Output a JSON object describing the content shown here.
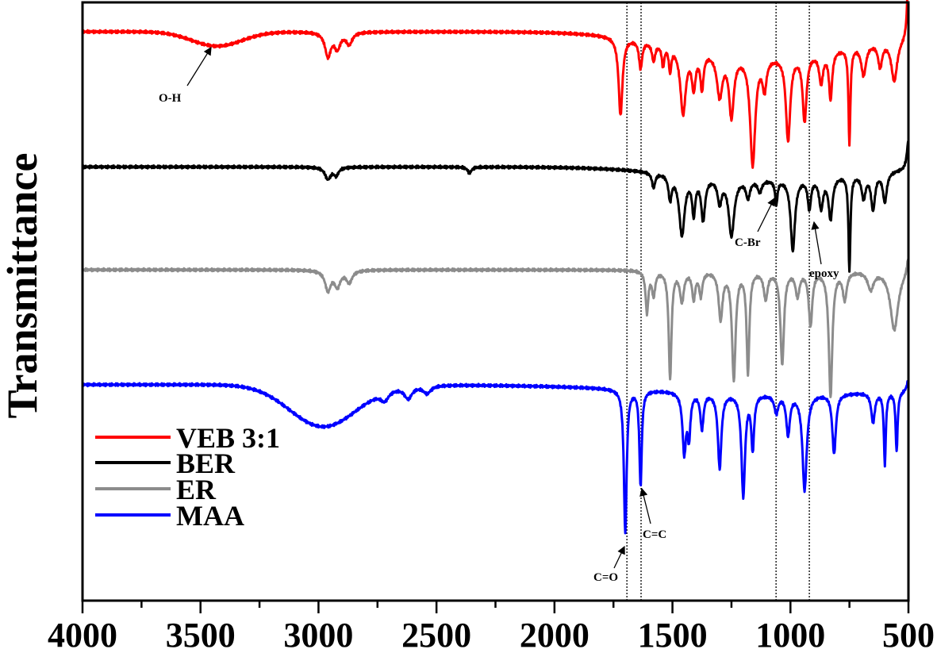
{
  "chart_data": {
    "type": "line",
    "title": "",
    "xlabel": "",
    "ylabel": "Transmittance",
    "xlim": [
      4000,
      500
    ],
    "ylim": [
      0,
      100
    ],
    "x_ticks": [
      4000,
      3500,
      3000,
      2500,
      2000,
      1500,
      1000,
      500
    ],
    "x_minor_step": 250,
    "grid": false,
    "legend_position": "bottom-left",
    "reference_lines": [
      1693,
      1633,
      1061,
      920
    ],
    "series": [
      {
        "name": "VEB 3:1",
        "color": "#ff0000",
        "baseline": 95.1,
        "peaks": [
          [
            3430,
            2.4,
            150,
            "g"
          ],
          [
            2960,
            4,
            15
          ],
          [
            2920,
            2.6,
            15
          ],
          [
            2870,
            2,
            15
          ],
          [
            1100,
            4,
            500,
            "g"
          ],
          [
            1720,
            13,
            10
          ],
          [
            1635,
            4.6,
            8
          ],
          [
            1580,
            3,
            8
          ],
          [
            1540,
            3.5,
            6
          ],
          [
            1510,
            4,
            6
          ],
          [
            1455,
            11,
            14
          ],
          [
            1410,
            6,
            10
          ],
          [
            1375,
            6,
            8
          ],
          [
            1300,
            7,
            14
          ],
          [
            1250,
            10,
            12
          ],
          [
            1160,
            18,
            13
          ],
          [
            1110,
            5,
            10
          ],
          [
            1010,
            14,
            11
          ],
          [
            940,
            11,
            10
          ],
          [
            870,
            5,
            10
          ],
          [
            830,
            8,
            8
          ],
          [
            750,
            16,
            5
          ],
          [
            690,
            5,
            12
          ],
          [
            620,
            4,
            10
          ],
          [
            560,
            7,
            15
          ],
          [
            500,
            -12,
            6
          ]
        ]
      },
      {
        "name": "BER",
        "color": "#000000",
        "baseline": 72.5,
        "peaks": [
          [
            2960,
            2,
            15
          ],
          [
            2925,
            1.3,
            12
          ],
          [
            2360,
            1,
            10
          ],
          [
            1100,
            2,
            500,
            "g"
          ],
          [
            1580,
            2.5,
            8
          ],
          [
            1510,
            4,
            8
          ],
          [
            1460,
            10,
            14
          ],
          [
            1410,
            6,
            8
          ],
          [
            1370,
            7,
            10
          ],
          [
            1300,
            4,
            10
          ],
          [
            1250,
            9.5,
            14
          ],
          [
            1180,
            3,
            10
          ],
          [
            1130,
            2,
            10
          ],
          [
            1060,
            4,
            6
          ],
          [
            990,
            12,
            11
          ],
          [
            920,
            5,
            8
          ],
          [
            870,
            5,
            10
          ],
          [
            830,
            7,
            10
          ],
          [
            750,
            16,
            5
          ],
          [
            690,
            4,
            10
          ],
          [
            650,
            6,
            10
          ],
          [
            600,
            5,
            10
          ],
          [
            500,
            -5,
            8
          ]
        ]
      },
      {
        "name": "ER",
        "color": "#8c8c8c",
        "baseline": 55.3,
        "peaks": [
          [
            2960,
            3.3,
            15
          ],
          [
            2920,
            2.6,
            15
          ],
          [
            2870,
            2,
            15
          ],
          [
            1608,
            7,
            7
          ],
          [
            1580,
            4,
            8
          ],
          [
            1510,
            18,
            7
          ],
          [
            1460,
            5,
            10
          ],
          [
            1410,
            4.6,
            8
          ],
          [
            1380,
            4,
            8
          ],
          [
            1296,
            8,
            10
          ],
          [
            1240,
            18,
            9
          ],
          [
            1180,
            17,
            7
          ],
          [
            1105,
            4.6,
            10
          ],
          [
            1035,
            15.5,
            9
          ],
          [
            970,
            4,
            10
          ],
          [
            915,
            9,
            9
          ],
          [
            830,
            21,
            9
          ],
          [
            770,
            4.6,
            10
          ],
          [
            660,
            3,
            15
          ],
          [
            560,
            10,
            20
          ],
          [
            500,
            -3,
            8
          ]
        ]
      },
      {
        "name": "MAA",
        "color": "#0000ff",
        "baseline": 36.1,
        "peaks": [
          [
            2980,
            7,
            200,
            "g"
          ],
          [
            2720,
            1.5,
            20
          ],
          [
            2620,
            2,
            20
          ],
          [
            2540,
            1.3,
            20
          ],
          [
            1000,
            1.5,
            800,
            "g"
          ],
          [
            1700,
            24,
            7
          ],
          [
            1635,
            16,
            6
          ],
          [
            1450,
            10,
            9
          ],
          [
            1430,
            7,
            7
          ],
          [
            1375,
            6,
            8
          ],
          [
            1300,
            12.5,
            9
          ],
          [
            1200,
            17,
            9
          ],
          [
            1160,
            9,
            7
          ],
          [
            1060,
            3,
            10
          ],
          [
            1010,
            6.6,
            9
          ],
          [
            940,
            16,
            11
          ],
          [
            815,
            10,
            9
          ],
          [
            650,
            5,
            9
          ],
          [
            600,
            12,
            5
          ],
          [
            550,
            10,
            5
          ],
          [
            500,
            -2,
            8
          ]
        ]
      }
    ],
    "annotations": [
      {
        "text": "O-H",
        "wavenumber": 3430
      },
      {
        "text": "C=O",
        "wavenumber": 1700
      },
      {
        "text": "C=C",
        "wavenumber": 1635
      },
      {
        "text": "C-Br",
        "wavenumber": 1061
      },
      {
        "text": "epoxy",
        "wavenumber": 920
      }
    ]
  }
}
